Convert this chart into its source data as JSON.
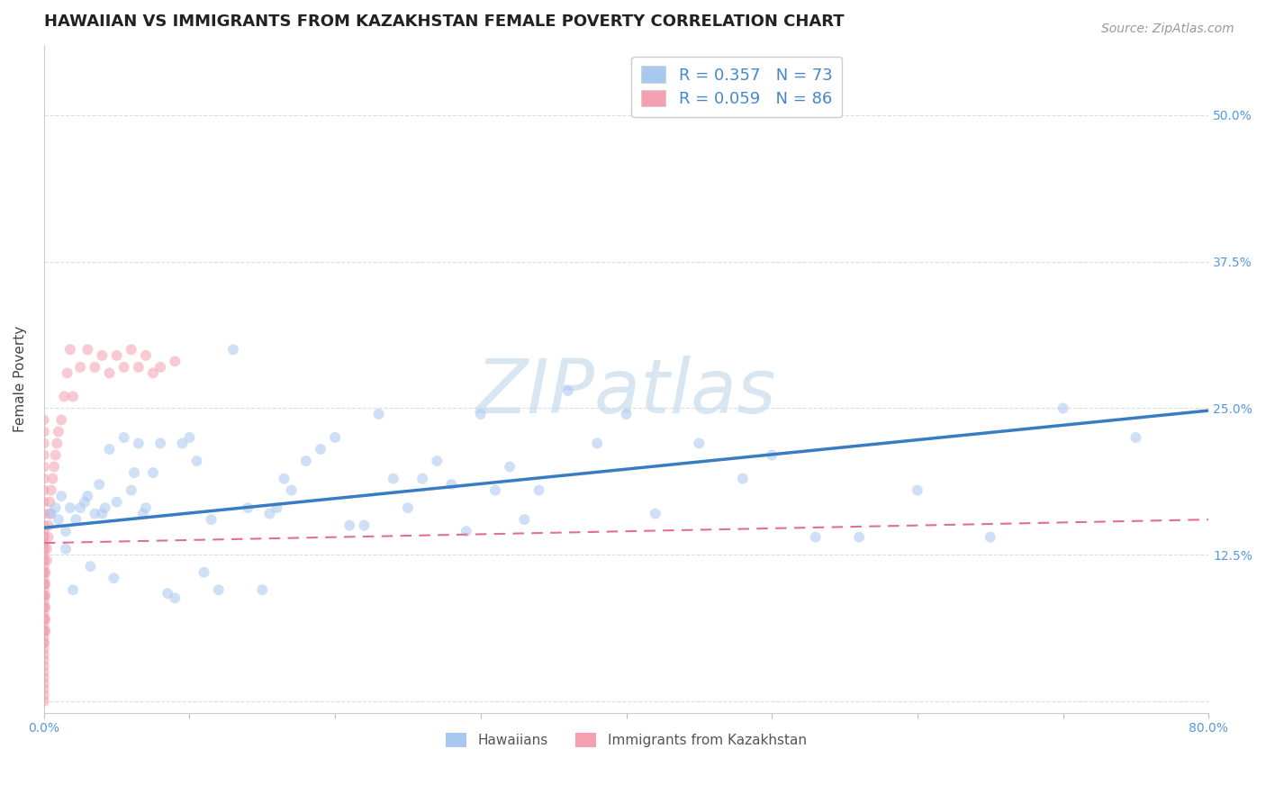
{
  "title": "HAWAIIAN VS IMMIGRANTS FROM KAZAKHSTAN FEMALE POVERTY CORRELATION CHART",
  "source": "Source: ZipAtlas.com",
  "ylabel": "Female Poverty",
  "xlim": [
    0.0,
    0.8
  ],
  "ylim": [
    -0.01,
    0.56
  ],
  "x_ticks": [
    0.0,
    0.1,
    0.2,
    0.3,
    0.4,
    0.5,
    0.6,
    0.7,
    0.8
  ],
  "y_ticks": [
    0.0,
    0.125,
    0.25,
    0.375,
    0.5
  ],
  "hawaiians_color": "#a8c8f0",
  "kazakhstan_color": "#f4a0b0",
  "hawaiians_line_color": "#3a7cc4",
  "kazakhstan_line_color": "#e07090",
  "watermark": "ZIPatlas",
  "watermark_color": "#c8dced",
  "background_color": "#ffffff",
  "grid_color": "#dddddd",
  "hawaiians_x": [
    0.005,
    0.008,
    0.01,
    0.012,
    0.015,
    0.015,
    0.018,
    0.02,
    0.022,
    0.025,
    0.028,
    0.03,
    0.032,
    0.035,
    0.038,
    0.04,
    0.042,
    0.045,
    0.048,
    0.05,
    0.055,
    0.06,
    0.062,
    0.065,
    0.068,
    0.07,
    0.075,
    0.08,
    0.085,
    0.09,
    0.095,
    0.1,
    0.105,
    0.11,
    0.115,
    0.12,
    0.13,
    0.14,
    0.15,
    0.155,
    0.16,
    0.165,
    0.17,
    0.18,
    0.19,
    0.2,
    0.21,
    0.22,
    0.23,
    0.24,
    0.25,
    0.26,
    0.27,
    0.28,
    0.29,
    0.3,
    0.31,
    0.32,
    0.33,
    0.34,
    0.36,
    0.38,
    0.4,
    0.42,
    0.45,
    0.48,
    0.5,
    0.53,
    0.56,
    0.6,
    0.65,
    0.7,
    0.75
  ],
  "hawaiians_y": [
    0.16,
    0.165,
    0.155,
    0.175,
    0.13,
    0.145,
    0.165,
    0.095,
    0.155,
    0.165,
    0.17,
    0.175,
    0.115,
    0.16,
    0.185,
    0.16,
    0.165,
    0.215,
    0.105,
    0.17,
    0.225,
    0.18,
    0.195,
    0.22,
    0.16,
    0.165,
    0.195,
    0.22,
    0.092,
    0.088,
    0.22,
    0.225,
    0.205,
    0.11,
    0.155,
    0.095,
    0.3,
    0.165,
    0.095,
    0.16,
    0.165,
    0.19,
    0.18,
    0.205,
    0.215,
    0.225,
    0.15,
    0.15,
    0.245,
    0.19,
    0.165,
    0.19,
    0.205,
    0.185,
    0.145,
    0.245,
    0.18,
    0.2,
    0.155,
    0.18,
    0.265,
    0.22,
    0.245,
    0.16,
    0.22,
    0.19,
    0.21,
    0.14,
    0.14,
    0.18,
    0.14,
    0.25,
    0.225
  ],
  "kazakhstan_x": [
    0.0,
    0.0,
    0.0,
    0.0,
    0.0,
    0.0,
    0.0,
    0.0,
    0.0,
    0.0,
    0.0,
    0.0,
    0.0,
    0.0,
    0.0,
    0.0,
    0.0,
    0.0,
    0.0,
    0.0,
    0.0,
    0.0,
    0.0,
    0.0,
    0.0,
    0.0,
    0.0,
    0.0,
    0.0,
    0.0,
    0.0,
    0.0,
    0.0,
    0.0,
    0.0,
    0.0,
    0.0,
    0.0,
    0.0,
    0.0,
    0.0,
    0.0,
    0.0,
    0.0,
    0.0,
    0.0,
    0.0,
    0.0,
    0.0,
    0.0,
    0.001,
    0.001,
    0.001,
    0.001,
    0.001,
    0.001,
    0.002,
    0.002,
    0.003,
    0.003,
    0.004,
    0.004,
    0.005,
    0.006,
    0.007,
    0.008,
    0.009,
    0.01,
    0.012,
    0.014,
    0.016,
    0.018,
    0.02,
    0.025,
    0.03,
    0.035,
    0.04,
    0.045,
    0.05,
    0.055,
    0.06,
    0.065,
    0.07,
    0.075,
    0.08,
    0.09
  ],
  "kazakhstan_y": [
    0.0,
    0.005,
    0.01,
    0.015,
    0.02,
    0.025,
    0.03,
    0.035,
    0.04,
    0.045,
    0.05,
    0.055,
    0.06,
    0.065,
    0.07,
    0.075,
    0.08,
    0.085,
    0.09,
    0.095,
    0.1,
    0.105,
    0.11,
    0.115,
    0.12,
    0.125,
    0.13,
    0.135,
    0.14,
    0.145,
    0.05,
    0.06,
    0.07,
    0.08,
    0.09,
    0.1,
    0.11,
    0.12,
    0.13,
    0.14,
    0.15,
    0.16,
    0.17,
    0.18,
    0.19,
    0.2,
    0.21,
    0.22,
    0.23,
    0.24,
    0.06,
    0.07,
    0.08,
    0.09,
    0.1,
    0.11,
    0.12,
    0.13,
    0.14,
    0.15,
    0.16,
    0.17,
    0.18,
    0.19,
    0.2,
    0.21,
    0.22,
    0.23,
    0.24,
    0.26,
    0.28,
    0.3,
    0.26,
    0.285,
    0.3,
    0.285,
    0.295,
    0.28,
    0.295,
    0.285,
    0.3,
    0.285,
    0.295,
    0.28,
    0.285,
    0.29
  ],
  "title_fontsize": 13,
  "source_fontsize": 10,
  "label_fontsize": 11,
  "tick_fontsize": 10,
  "legend_fontsize": 13,
  "watermark_fontsize": 60,
  "scatter_size": 75,
  "scatter_alpha": 0.55,
  "hawaiians_trend_start_x": 0.0,
  "hawaiians_trend_end_x": 0.8,
  "hawaiians_trend_start_y": 0.148,
  "hawaiians_trend_end_y": 0.248,
  "kazakhstan_trend_start_x": 0.0,
  "kazakhstan_trend_end_x": 0.8,
  "kazakhstan_trend_start_y": 0.135,
  "kazakhstan_trend_end_y": 0.155
}
